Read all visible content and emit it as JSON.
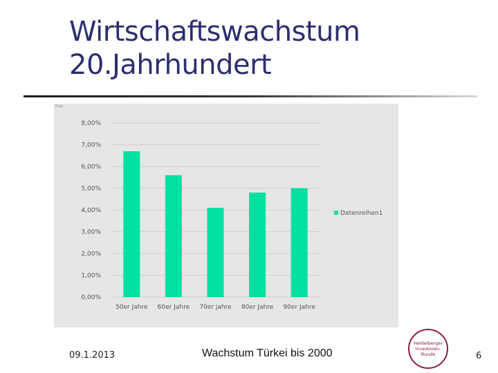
{
  "slide": {
    "title_line1": "Wirtschaftswachstum",
    "title_line2": "20.Jahrhundert"
  },
  "chart_data": {
    "type": "bar",
    "tag": "Diagr...",
    "categories": [
      "50er Jahre",
      "60er Jahre",
      "70er jahre",
      "80er Jahre",
      "90er Jahre"
    ],
    "series": [
      {
        "name": "Datenreihen1",
        "values": [
          6.7,
          5.6,
          4.1,
          4.8,
          5.0
        ]
      }
    ],
    "ylim": [
      0,
      8
    ],
    "yticks": [
      "0,00%",
      "1,00%",
      "2,00%",
      "3,00%",
      "4,00%",
      "5,00%",
      "6,00%",
      "7,00%",
      "8,00%"
    ],
    "grid": true,
    "legend_position": "right",
    "bar_color": "#00e0a0"
  },
  "footer": {
    "date": "09.1.2013",
    "caption": "Wachstum Türkei bis 2000",
    "page_number": "6"
  },
  "logo": {
    "line1": "Heidelberger",
    "line2": "Investoren-",
    "line3": "Runde"
  }
}
